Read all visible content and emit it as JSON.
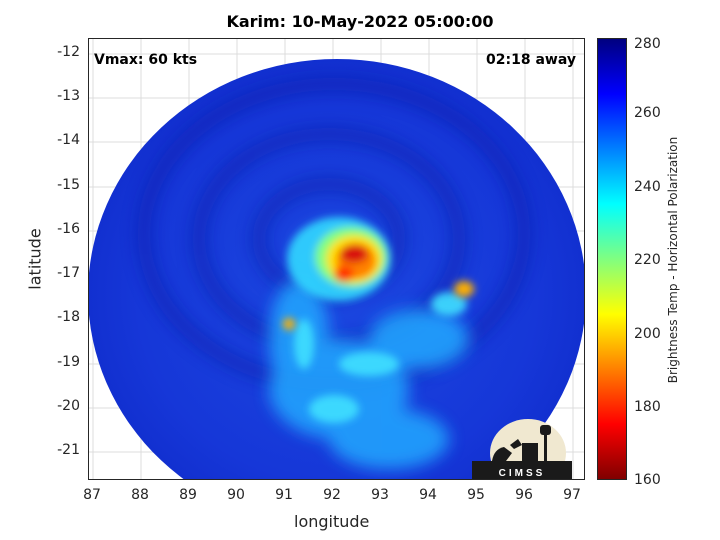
{
  "title": "Karim: 10-May-2022 05:00:00",
  "annotations": {
    "vmax": "Vmax: 60 kts",
    "time_away": "02:18 away"
  },
  "axes": {
    "xlabel": "longitude",
    "ylabel": "latitude",
    "xticks": [
      "87",
      "88",
      "89",
      "90",
      "91",
      "92",
      "93",
      "94",
      "95",
      "96",
      "97"
    ],
    "yticks": [
      "-12",
      "-13",
      "-14",
      "-15",
      "-16",
      "-17",
      "-18",
      "-19",
      "-20",
      "-21"
    ],
    "xlim": [
      86.9,
      97.3
    ],
    "ylim": [
      -21.7,
      -11.8
    ]
  },
  "colorbar": {
    "label": "Brightness Temp - Horizontal Polarization",
    "ticks": [
      "280",
      "260",
      "240",
      "220",
      "200",
      "180",
      "160"
    ],
    "range": [
      160,
      280
    ]
  },
  "logo": {
    "text": "CIMSS"
  },
  "colors": {
    "background_swath": "#1a3cd6",
    "warm_core": "#cc1010",
    "eyewall": "#ffd000",
    "outer_band": "#00d0ff"
  }
}
